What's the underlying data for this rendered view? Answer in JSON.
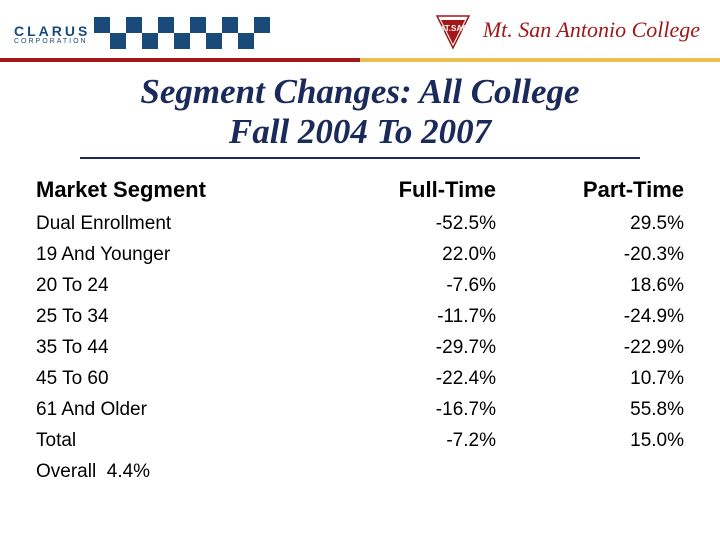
{
  "header": {
    "left_logo": {
      "line1": "CLARUS",
      "line2": "CORPORATION"
    },
    "right_logo": {
      "badge_top": "MT. SAC",
      "name": "Mt. San Antonio College"
    },
    "checker_colors": {
      "blue": "#1a4a7a",
      "white": "#ffffff"
    },
    "gradient": {
      "left": "#a01818",
      "right": "#e8c050"
    }
  },
  "title": {
    "line1": "Segment Changes: All College",
    "line2": "Fall 2004 To 2007",
    "color": "#1a2a5a",
    "fontsize": 35
  },
  "table": {
    "columns": [
      "Market Segment",
      "Full-Time",
      "Part-Time"
    ],
    "header_fontsize": 22,
    "row_fontsize": 19,
    "rows": [
      {
        "segment": "Dual Enrollment",
        "full": "-52.5%",
        "part": "29.5%"
      },
      {
        "segment": "19 And Younger",
        "full": "22.0%",
        "part": "-20.3%"
      },
      {
        "segment": "20 To 24",
        "full": "-7.6%",
        "part": "18.6%"
      },
      {
        "segment": "25 To 34",
        "full": "-11.7%",
        "part": "-24.9%"
      },
      {
        "segment": "35 To 44",
        "full": "-29.7%",
        "part": "-22.9%"
      },
      {
        "segment": "45 To 60",
        "full": "-22.4%",
        "part": "10.7%"
      },
      {
        "segment": "61 And Older",
        "full": "-16.7%",
        "part": "55.8%"
      },
      {
        "segment": "Total",
        "full": "-7.2%",
        "part": "15.0%"
      }
    ],
    "overall_label": "Overall",
    "overall_value": "4.4%"
  },
  "colors": {
    "title": "#1a2a5a",
    "text": "#000000",
    "clarus": "#1a4a7a",
    "mtsac": "#a01818",
    "bg": "#ffffff"
  }
}
